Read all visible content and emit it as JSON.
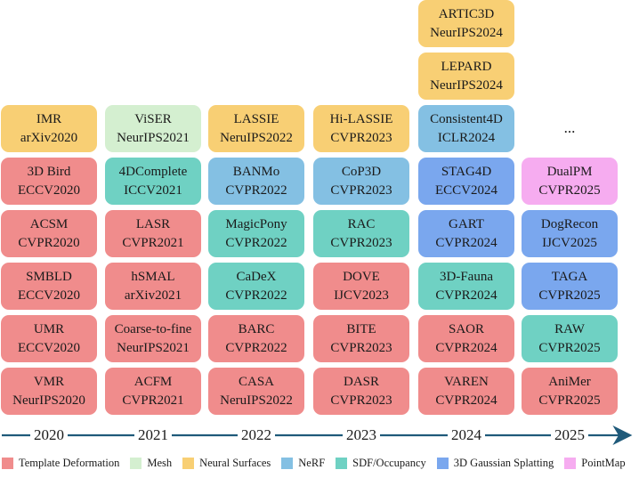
{
  "colors": {
    "template": "#f08c8c",
    "mesh": "#d4efd0",
    "neural": "#f8cf74",
    "nerf": "#84c0e3",
    "sdf": "#6fd1c3",
    "gaussian": "#7aa7ee",
    "pointmap": "#f6acf0"
  },
  "years": [
    "2020",
    "2021",
    "2022",
    "2023",
    "2024",
    "2025"
  ],
  "columns": [
    {
      "cards": [
        {
          "name": "IMR",
          "venue": "arXiv2020",
          "type": "neural"
        },
        {
          "name": "3D Bird",
          "venue": "ECCV2020",
          "type": "template"
        },
        {
          "name": "ACSM",
          "venue": "CVPR2020",
          "type": "template"
        },
        {
          "name": "SMBLD",
          "venue": "ECCV2020",
          "type": "template"
        },
        {
          "name": "UMR",
          "venue": "ECCV2020",
          "type": "template"
        },
        {
          "name": "VMR",
          "venue": "NeurIPS2020",
          "type": "template"
        }
      ]
    },
    {
      "cards": [
        {
          "name": "ViSER",
          "venue": "NeurIPS2021",
          "type": "mesh"
        },
        {
          "name": "4DComplete",
          "venue": "ICCV2021",
          "type": "sdf"
        },
        {
          "name": "LASR",
          "venue": "CVPR2021",
          "type": "template"
        },
        {
          "name": "hSMAL",
          "venue": "arXiv2021",
          "type": "template"
        },
        {
          "name": "Coarse-to-fine",
          "venue": "NeurIPS2021",
          "type": "template"
        },
        {
          "name": "ACFM",
          "venue": "CVPR2021",
          "type": "template"
        }
      ]
    },
    {
      "cards": [
        {
          "name": "LASSIE",
          "venue": "NeruIPS2022",
          "type": "neural"
        },
        {
          "name": "BANMo",
          "venue": "CVPR2022",
          "type": "nerf"
        },
        {
          "name": "MagicPony",
          "venue": "CVPR2022",
          "type": "sdf"
        },
        {
          "name": "CaDeX",
          "venue": "CVPR2022",
          "type": "sdf"
        },
        {
          "name": "BARC",
          "venue": "CVPR2022",
          "type": "template"
        },
        {
          "name": "CASA",
          "venue": "NeruIPS2022",
          "type": "template"
        }
      ]
    },
    {
      "cards": [
        {
          "name": "Hi-LASSIE",
          "venue": "CVPR2023",
          "type": "neural"
        },
        {
          "name": "CoP3D",
          "venue": "CVPR2023",
          "type": "nerf"
        },
        {
          "name": "RAC",
          "venue": "CVPR2023",
          "type": "sdf"
        },
        {
          "name": "DOVE",
          "venue": "IJCV2023",
          "type": "template"
        },
        {
          "name": "BITE",
          "venue": "CVPR2023",
          "type": "template"
        },
        {
          "name": "DASR",
          "venue": "CVPR2023",
          "type": "template"
        }
      ]
    },
    {
      "cards": [
        {
          "name": "ARTIC3D",
          "venue": "NeurIPS2024",
          "type": "neural"
        },
        {
          "name": "LEPARD",
          "venue": "NeurIPS2024",
          "type": "neural"
        },
        {
          "name": "Consistent4D",
          "venue": "ICLR2024",
          "type": "nerf"
        },
        {
          "name": "STAG4D",
          "venue": "ECCV2024",
          "type": "gaussian"
        },
        {
          "name": "GART",
          "venue": "CVPR2024",
          "type": "gaussian"
        },
        {
          "name": "3D-Fauna",
          "venue": "CVPR2024",
          "type": "sdf"
        },
        {
          "name": "SAOR",
          "venue": "CVPR2024",
          "type": "template"
        },
        {
          "name": "VAREN",
          "venue": "CVPR2024",
          "type": "template"
        }
      ]
    },
    {
      "ellipsis": "...",
      "cards": [
        {
          "name": "DualPM",
          "venue": "CVPR2025",
          "type": "pointmap"
        },
        {
          "name": "DogRecon",
          "venue": "IJCV2025",
          "type": "gaussian"
        },
        {
          "name": "TAGA",
          "venue": "CVPR2025",
          "type": "gaussian"
        },
        {
          "name": "RAW",
          "venue": "CVPR2025",
          "type": "sdf"
        },
        {
          "name": "AniMer",
          "venue": "CVPR2025",
          "type": "template"
        }
      ]
    }
  ],
  "legend": [
    {
      "label": "Template Deformation",
      "type": "template"
    },
    {
      "label": "Mesh",
      "type": "mesh"
    },
    {
      "label": "Neural Surfaces",
      "type": "neural"
    },
    {
      "label": "NeRF",
      "type": "nerf"
    },
    {
      "label": "SDF/Occupancy",
      "type": "sdf"
    },
    {
      "label": "3D Gaussian Splatting",
      "type": "gaussian"
    },
    {
      "label": "PointMap",
      "type": "pointmap"
    }
  ]
}
